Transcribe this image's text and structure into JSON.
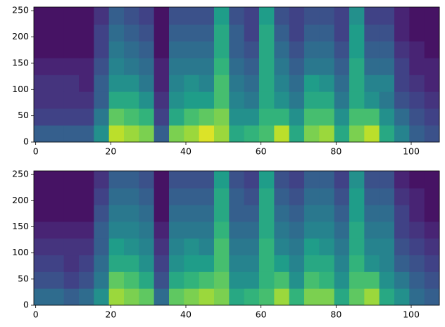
{
  "chart_data": [
    {
      "type": "heatmap",
      "colormap": "viridis",
      "clim": [
        0,
        1
      ],
      "x_edges": [
        -0.5,
        3.5,
        7.5,
        11.5,
        15.5,
        19.5,
        23.5,
        27.5,
        31.5,
        35.5,
        39.5,
        43.5,
        47.5,
        51.5,
        55.5,
        59.5,
        63.5,
        67.5,
        71.5,
        75.5,
        79.5,
        83.5,
        87.5,
        91.5,
        95.5,
        99.5,
        103.5,
        107.5
      ],
      "y_edges": [
        0,
        32,
        64,
        96,
        128,
        160,
        192,
        224,
        257
      ],
      "z": [
        [
          0.3,
          0.3,
          0.3,
          0.3,
          0.5,
          0.9,
          0.85,
          0.8,
          0.3,
          0.8,
          0.85,
          0.95,
          0.85,
          0.6,
          0.65,
          0.7,
          0.9,
          0.6,
          0.8,
          0.85,
          0.6,
          0.8,
          0.9,
          0.6,
          0.45,
          0.3,
          0.25
        ],
        [
          0.2,
          0.2,
          0.2,
          0.2,
          0.4,
          0.75,
          0.7,
          0.65,
          0.2,
          0.6,
          0.7,
          0.75,
          0.8,
          0.5,
          0.5,
          0.65,
          0.65,
          0.5,
          0.7,
          0.7,
          0.5,
          0.7,
          0.7,
          0.5,
          0.35,
          0.25,
          0.2
        ],
        [
          0.15,
          0.15,
          0.15,
          0.15,
          0.3,
          0.6,
          0.6,
          0.5,
          0.15,
          0.5,
          0.55,
          0.55,
          0.7,
          0.45,
          0.4,
          0.6,
          0.5,
          0.4,
          0.6,
          0.6,
          0.4,
          0.6,
          0.5,
          0.4,
          0.25,
          0.2,
          0.15
        ],
        [
          0.15,
          0.15,
          0.15,
          0.1,
          0.3,
          0.5,
          0.5,
          0.4,
          0.1,
          0.45,
          0.5,
          0.45,
          0.7,
          0.4,
          0.35,
          0.6,
          0.45,
          0.35,
          0.55,
          0.5,
          0.35,
          0.6,
          0.45,
          0.45,
          0.2,
          0.15,
          0.1
        ],
        [
          0.1,
          0.1,
          0.1,
          0.1,
          0.25,
          0.45,
          0.4,
          0.35,
          0.1,
          0.4,
          0.4,
          0.4,
          0.65,
          0.35,
          0.3,
          0.6,
          0.4,
          0.3,
          0.4,
          0.4,
          0.3,
          0.6,
          0.35,
          0.35,
          0.2,
          0.1,
          0.1
        ],
        [
          0.05,
          0.05,
          0.05,
          0.05,
          0.2,
          0.4,
          0.35,
          0.3,
          0.05,
          0.35,
          0.35,
          0.35,
          0.6,
          0.3,
          0.25,
          0.6,
          0.35,
          0.25,
          0.35,
          0.35,
          0.25,
          0.55,
          0.3,
          0.3,
          0.15,
          0.1,
          0.05
        ],
        [
          0.05,
          0.05,
          0.05,
          0.05,
          0.2,
          0.35,
          0.3,
          0.25,
          0.05,
          0.3,
          0.3,
          0.3,
          0.6,
          0.3,
          0.2,
          0.6,
          0.3,
          0.2,
          0.3,
          0.3,
          0.2,
          0.55,
          0.25,
          0.25,
          0.1,
          0.05,
          0.05
        ],
        [
          0.05,
          0.05,
          0.05,
          0.05,
          0.15,
          0.3,
          0.25,
          0.2,
          0.05,
          0.25,
          0.25,
          0.25,
          0.55,
          0.25,
          0.2,
          0.55,
          0.25,
          0.2,
          0.25,
          0.25,
          0.2,
          0.5,
          0.2,
          0.2,
          0.1,
          0.05,
          0.05
        ]
      ],
      "xlim": [
        -0.5,
        107.5
      ],
      "ylim": [
        0,
        257
      ],
      "xticks": [
        0,
        20,
        40,
        60,
        80,
        100
      ],
      "yticks": [
        0,
        50,
        100,
        150,
        200,
        250
      ]
    },
    {
      "type": "heatmap",
      "colormap": "viridis",
      "clim": [
        0,
        1
      ],
      "x_edges": [
        -0.5,
        3.5,
        7.5,
        11.5,
        15.5,
        19.5,
        23.5,
        27.5,
        31.5,
        35.5,
        39.5,
        43.5,
        47.5,
        51.5,
        55.5,
        59.5,
        63.5,
        67.5,
        71.5,
        75.5,
        79.5,
        83.5,
        87.5,
        91.5,
        95.5,
        99.5,
        103.5,
        107.5
      ],
      "y_edges": [
        0,
        32,
        64,
        96,
        128,
        160,
        192,
        224,
        257
      ],
      "z": [
        [
          0.35,
          0.35,
          0.3,
          0.35,
          0.5,
          0.85,
          0.8,
          0.75,
          0.35,
          0.75,
          0.8,
          0.85,
          0.8,
          0.6,
          0.65,
          0.7,
          0.85,
          0.65,
          0.8,
          0.8,
          0.6,
          0.75,
          0.85,
          0.6,
          0.5,
          0.35,
          0.3
        ],
        [
          0.25,
          0.25,
          0.2,
          0.25,
          0.4,
          0.75,
          0.7,
          0.6,
          0.25,
          0.6,
          0.65,
          0.7,
          0.75,
          0.5,
          0.5,
          0.65,
          0.7,
          0.5,
          0.7,
          0.65,
          0.5,
          0.7,
          0.7,
          0.5,
          0.4,
          0.3,
          0.25
        ],
        [
          0.2,
          0.2,
          0.15,
          0.2,
          0.35,
          0.6,
          0.6,
          0.5,
          0.2,
          0.5,
          0.55,
          0.55,
          0.7,
          0.45,
          0.45,
          0.65,
          0.55,
          0.45,
          0.6,
          0.6,
          0.45,
          0.65,
          0.5,
          0.45,
          0.3,
          0.25,
          0.2
        ],
        [
          0.15,
          0.15,
          0.15,
          0.15,
          0.3,
          0.55,
          0.5,
          0.45,
          0.15,
          0.45,
          0.5,
          0.45,
          0.7,
          0.4,
          0.4,
          0.65,
          0.45,
          0.4,
          0.55,
          0.5,
          0.4,
          0.6,
          0.45,
          0.45,
          0.25,
          0.2,
          0.15
        ],
        [
          0.1,
          0.1,
          0.1,
          0.1,
          0.3,
          0.45,
          0.45,
          0.4,
          0.1,
          0.4,
          0.4,
          0.4,
          0.65,
          0.35,
          0.35,
          0.6,
          0.4,
          0.35,
          0.45,
          0.45,
          0.35,
          0.6,
          0.4,
          0.4,
          0.2,
          0.15,
          0.1
        ],
        [
          0.05,
          0.05,
          0.05,
          0.05,
          0.25,
          0.4,
          0.4,
          0.35,
          0.05,
          0.35,
          0.35,
          0.35,
          0.6,
          0.3,
          0.3,
          0.6,
          0.35,
          0.3,
          0.4,
          0.4,
          0.3,
          0.55,
          0.35,
          0.35,
          0.2,
          0.1,
          0.05
        ],
        [
          0.05,
          0.05,
          0.05,
          0.05,
          0.2,
          0.35,
          0.35,
          0.3,
          0.05,
          0.3,
          0.3,
          0.3,
          0.6,
          0.3,
          0.25,
          0.6,
          0.3,
          0.25,
          0.35,
          0.35,
          0.25,
          0.55,
          0.3,
          0.3,
          0.15,
          0.1,
          0.05
        ],
        [
          0.05,
          0.05,
          0.05,
          0.05,
          0.15,
          0.3,
          0.3,
          0.25,
          0.05,
          0.25,
          0.25,
          0.25,
          0.55,
          0.25,
          0.2,
          0.55,
          0.25,
          0.2,
          0.3,
          0.3,
          0.2,
          0.5,
          0.25,
          0.25,
          0.1,
          0.05,
          0.05
        ]
      ],
      "xlim": [
        -0.5,
        107.5
      ],
      "ylim": [
        0,
        257
      ],
      "xticks": [
        0,
        20,
        40,
        60,
        80,
        100
      ],
      "yticks": [
        0,
        50,
        100,
        150,
        200,
        250
      ]
    }
  ]
}
